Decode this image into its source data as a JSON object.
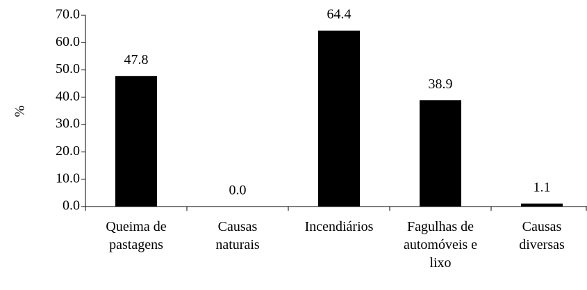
{
  "chart_data": {
    "type": "bar",
    "y_label": "%",
    "categories": [
      "Queima de\npastagens",
      "Causas\nnaturais",
      "Incendiários",
      "Fagulhas de\nautomóveis e\nlixo",
      "Causas\ndiversas"
    ],
    "values": [
      47.8,
      0,
      64.4,
      38.9,
      1.1
    ],
    "value_labels": [
      "47.8",
      "0.0",
      "64.4",
      "38.9",
      "1.1"
    ],
    "color": "#000000",
    "ylim": [
      0,
      70
    ],
    "yticks": [
      {
        "value": 0,
        "label": "0.0"
      },
      {
        "value": 10,
        "label": "10.0"
      },
      {
        "value": 20,
        "label": "20.0"
      },
      {
        "value": 30,
        "label": "30.0"
      },
      {
        "value": 40,
        "label": "40.0"
      },
      {
        "value": 50,
        "label": "50.0"
      },
      {
        "value": 60,
        "label": "60.0"
      },
      {
        "value": 70,
        "label": "70.0"
      }
    ],
    "grid": false
  }
}
